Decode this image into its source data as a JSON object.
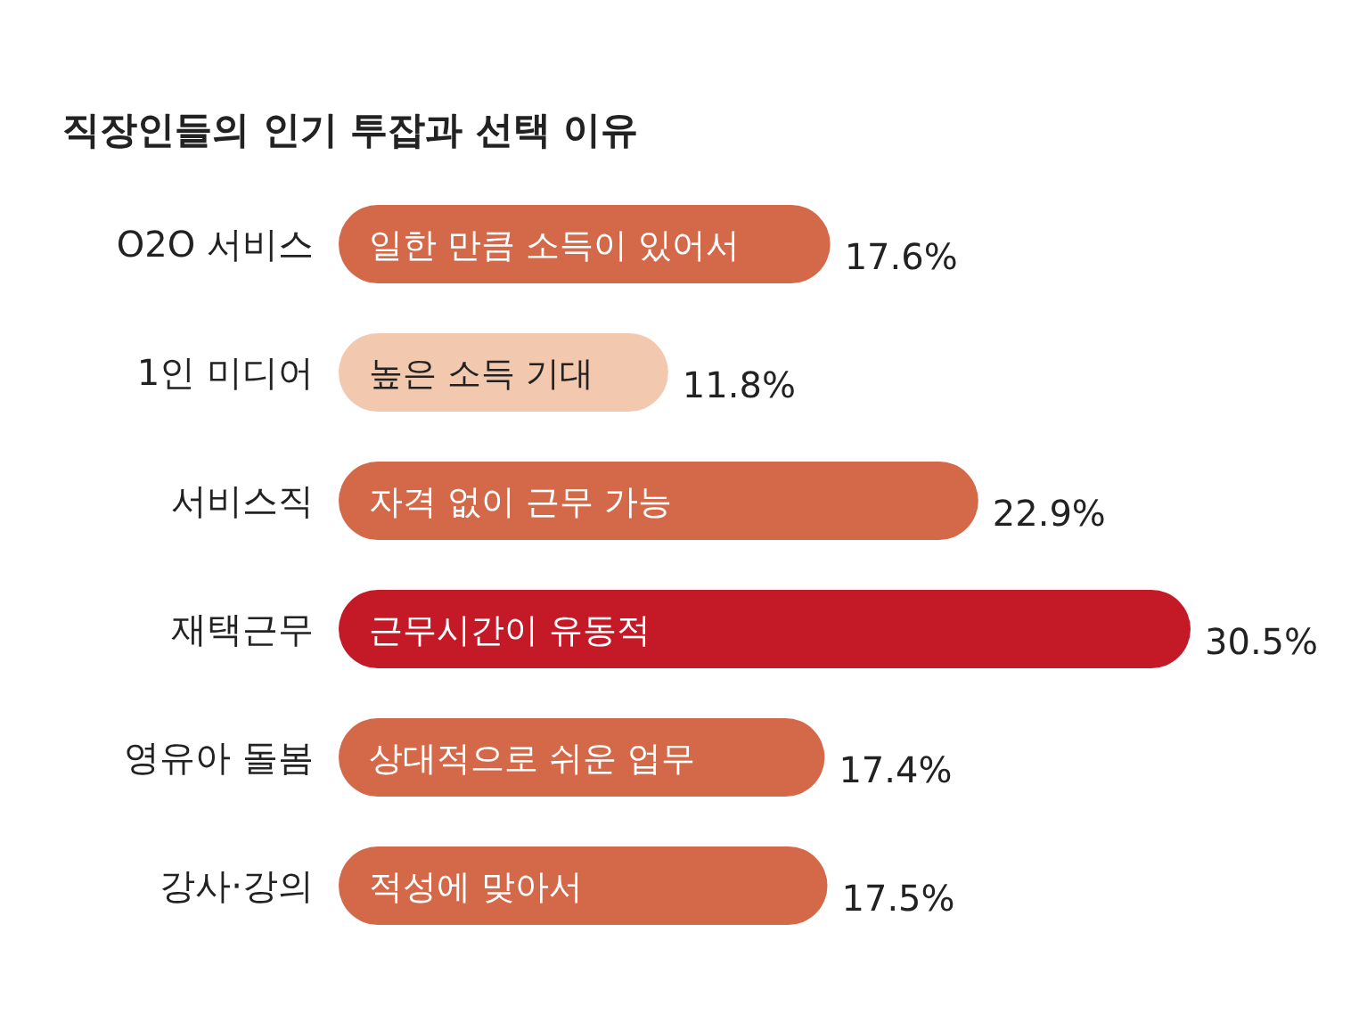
{
  "chart_data": {
    "type": "bar",
    "orientation": "horizontal",
    "title": "직장인들의 인기 투잡과 선택 이유",
    "categories": [
      "O2O 서비스",
      "1인 미디어",
      "서비스직",
      "재택근무",
      "영유아 돌봄",
      "강사·강의"
    ],
    "values": [
      17.6,
      11.8,
      22.9,
      30.5,
      17.4,
      17.5
    ],
    "colors": [
      "#d4694a",
      "#f2c9ae",
      "#d4694a",
      "#c41a28",
      "#d4694a",
      "#d4694a"
    ],
    "value_labels": [
      "17.6%",
      "11.8%",
      "22.9%",
      "30.5%",
      "17.4%",
      "17.5%"
    ],
    "annotations": [
      "일한 만큼 소득이 있어서",
      "높은 소득 기대",
      "자격 없이 근무 가능",
      "근무시간이 유동적",
      "상대적으로 쉬운 업무",
      "적성에 맞아서"
    ]
  }
}
